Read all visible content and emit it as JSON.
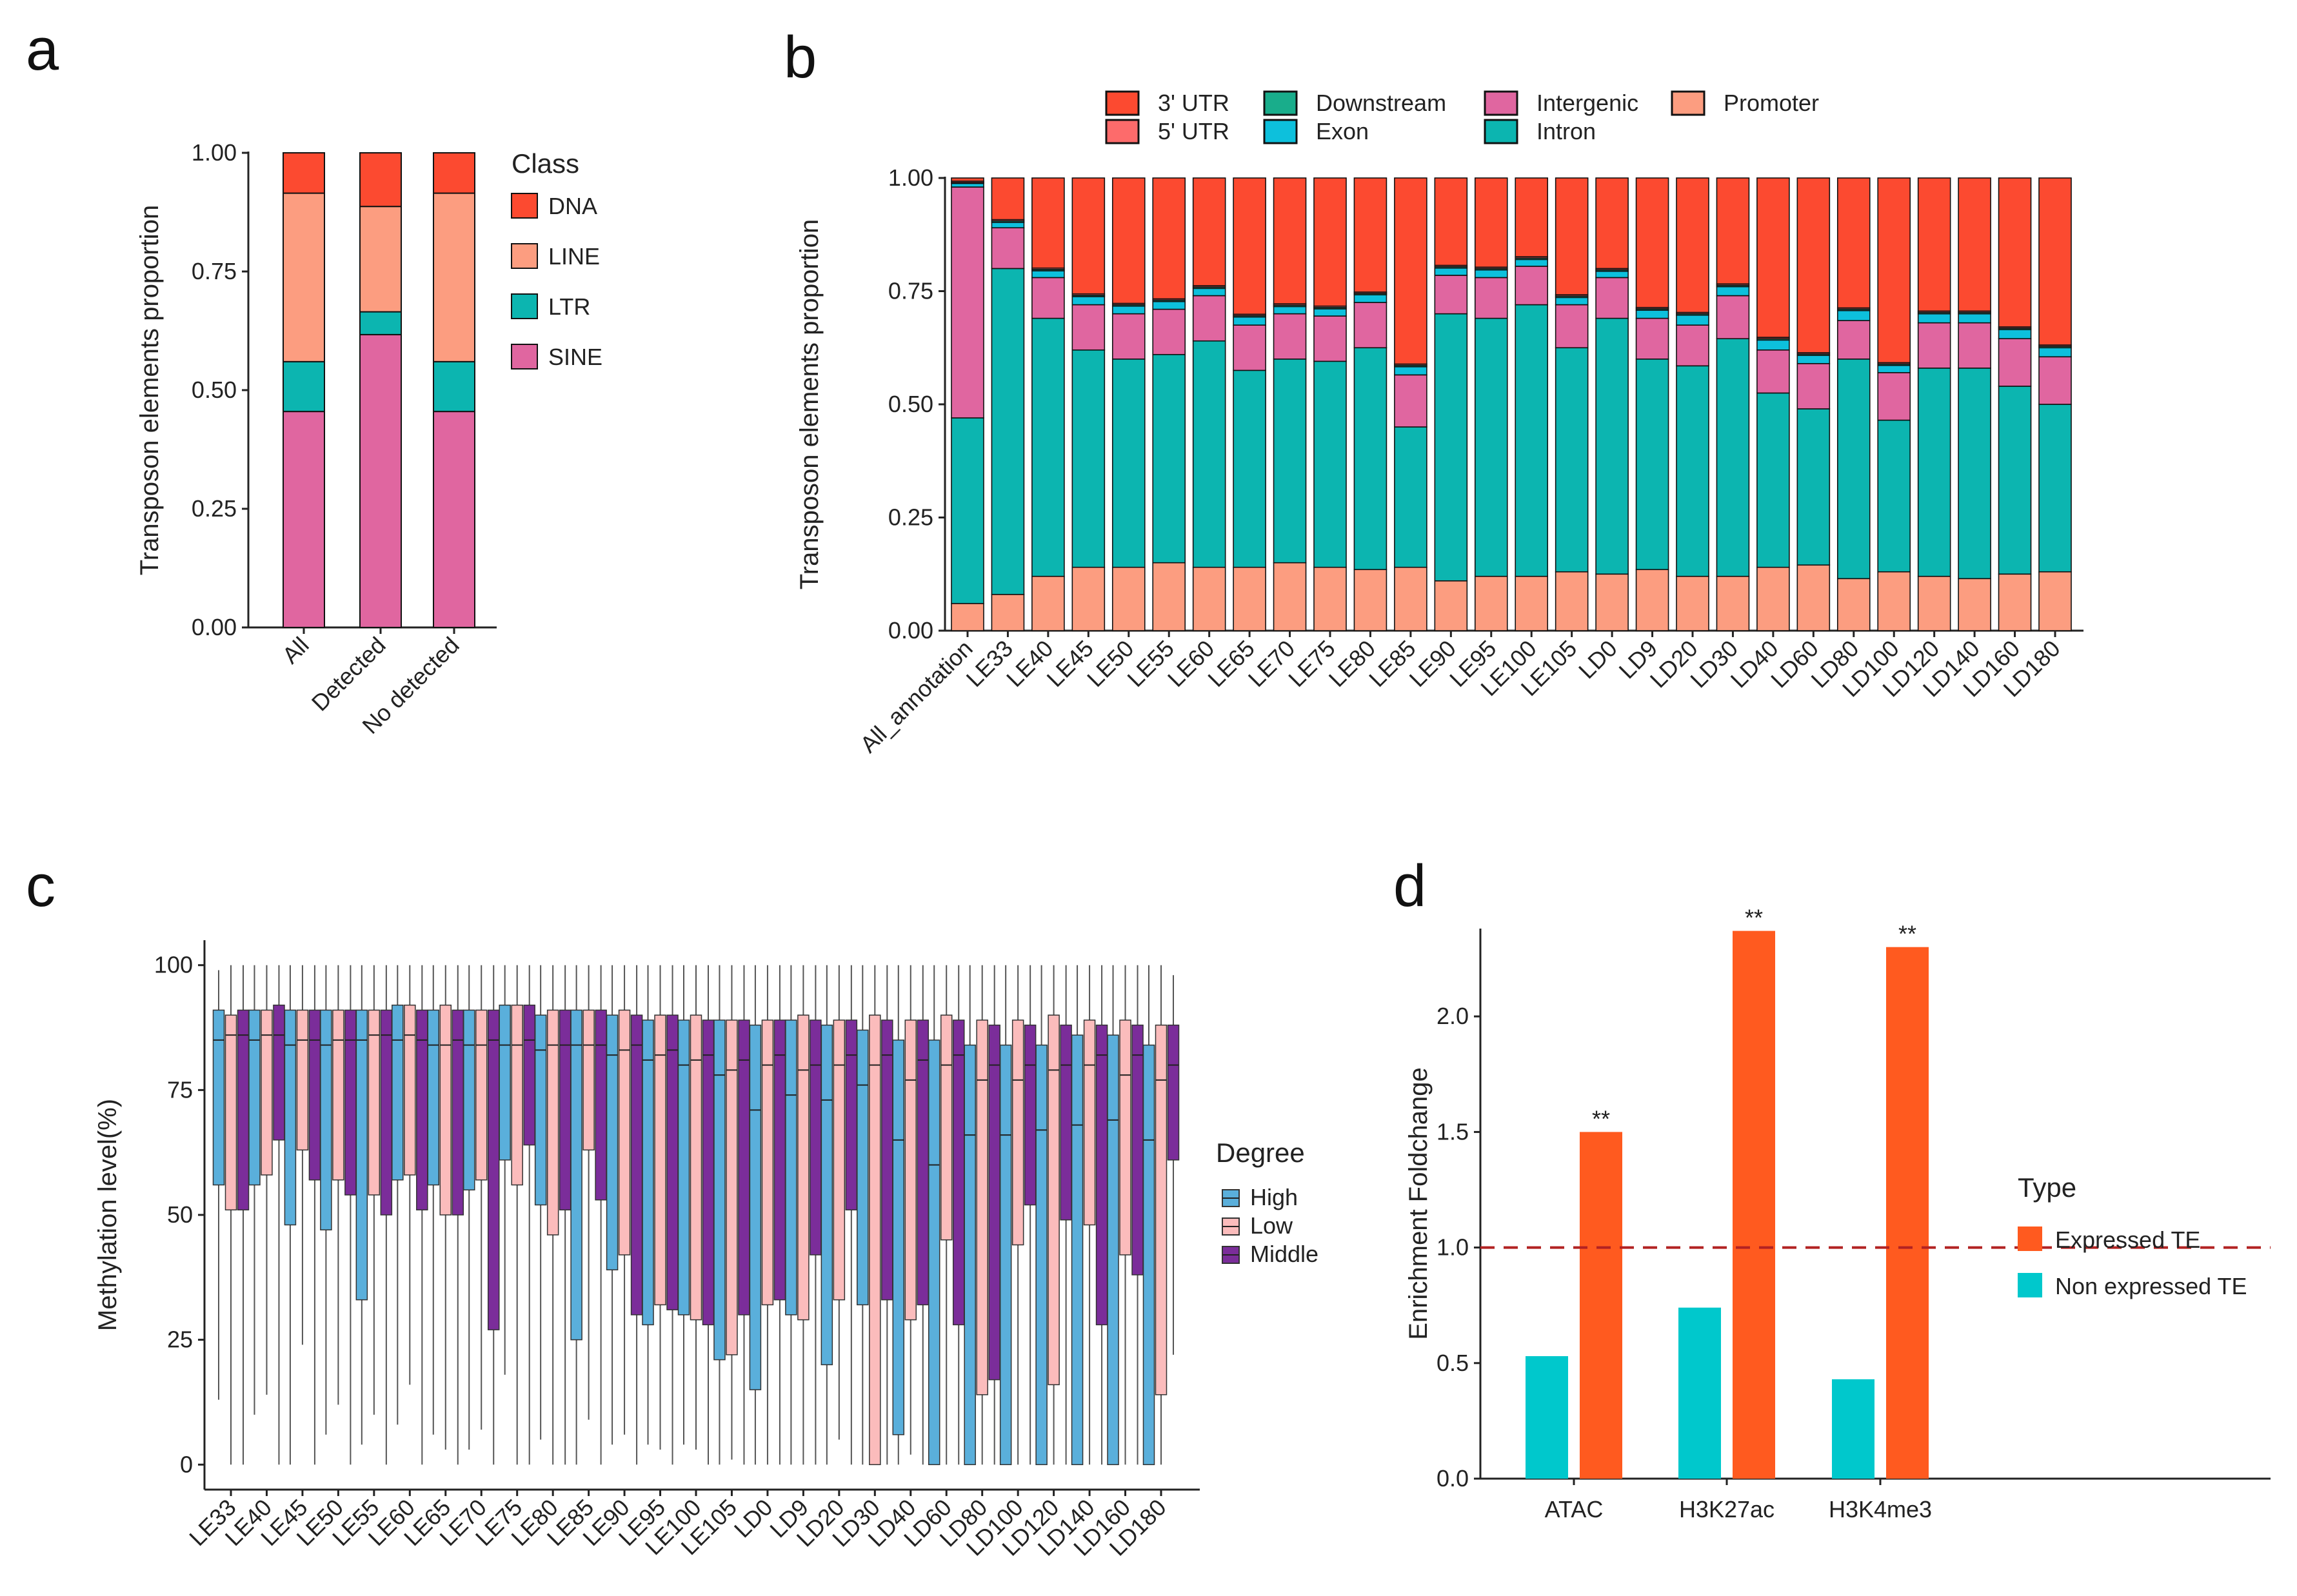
{
  "chart_data": [
    {
      "panel": "a",
      "type": "bar",
      "stacked": true,
      "title": "",
      "xlabel": "",
      "ylabel": "Transposon elements proportion",
      "ylim": [
        0,
        1
      ],
      "yticks": [
        "0.00",
        "0.25",
        "0.50",
        "0.75",
        "1.00"
      ],
      "categories": [
        "All",
        "Detected",
        "No detected"
      ],
      "legend_title": "Class",
      "legend_position": "right",
      "series": [
        {
          "name": "SINE",
          "color": "#e066a0",
          "values": [
            0.455,
            0.617,
            0.455
          ]
        },
        {
          "name": "LTR",
          "color": "#0cb5b0",
          "values": [
            0.105,
            0.048,
            0.105
          ]
        },
        {
          "name": "LINE",
          "color": "#fc9d80",
          "values": [
            0.355,
            0.222,
            0.355
          ]
        },
        {
          "name": "DNA",
          "color": "#fc4a30",
          "values": [
            0.085,
            0.113,
            0.085
          ]
        }
      ],
      "legend_order": [
        "DNA",
        "LINE",
        "LTR",
        "SINE"
      ]
    },
    {
      "panel": "b",
      "type": "bar",
      "stacked": true,
      "title": "",
      "xlabel": "",
      "ylabel": "Transposon elements proportion",
      "ylim": [
        0,
        1
      ],
      "yticks": [
        "0.00",
        "0.25",
        "0.50",
        "0.75",
        "1.00"
      ],
      "categories": [
        "All_annotation",
        "LE33",
        "LE40",
        "LE45",
        "LE50",
        "LE55",
        "LE60",
        "LE65",
        "LE70",
        "LE75",
        "LE80",
        "LE85",
        "LE90",
        "LE95",
        "LE100",
        "LE105",
        "LD0",
        "LD9",
        "LD20",
        "LD30",
        "LD40",
        "LD60",
        "LD80",
        "LD100",
        "LD120",
        "LD140",
        "LD160",
        "LD180"
      ],
      "legend_position": "top",
      "series": [
        {
          "name": "Promoter",
          "color": "#fc9d80",
          "values": [
            0.06,
            0.08,
            0.12,
            0.14,
            0.14,
            0.15,
            0.14,
            0.14,
            0.15,
            0.14,
            0.135,
            0.14,
            0.11,
            0.12,
            0.12,
            0.13,
            0.125,
            0.135,
            0.12,
            0.12,
            0.14,
            0.145,
            0.115,
            0.13,
            0.12,
            0.115,
            0.125,
            0.13
          ]
        },
        {
          "name": "Intron",
          "color": "#0cb5b0",
          "values": [
            0.41,
            0.72,
            0.57,
            0.48,
            0.46,
            0.46,
            0.5,
            0.435,
            0.45,
            0.455,
            0.49,
            0.31,
            0.59,
            0.57,
            0.6,
            0.495,
            0.565,
            0.465,
            0.465,
            0.525,
            0.385,
            0.345,
            0.485,
            0.335,
            0.46,
            0.465,
            0.415,
            0.37
          ]
        },
        {
          "name": "Intergenic",
          "color": "#e066a0",
          "values": [
            0.51,
            0.09,
            0.09,
            0.1,
            0.1,
            0.1,
            0.1,
            0.1,
            0.1,
            0.1,
            0.1,
            0.115,
            0.085,
            0.09,
            0.085,
            0.095,
            0.09,
            0.09,
            0.09,
            0.095,
            0.095,
            0.1,
            0.085,
            0.105,
            0.1,
            0.1,
            0.105,
            0.105
          ]
        },
        {
          "name": "Exon",
          "color": "#0dc0dc",
          "values": [
            0.008,
            0.012,
            0.015,
            0.018,
            0.017,
            0.017,
            0.016,
            0.018,
            0.016,
            0.016,
            0.017,
            0.018,
            0.016,
            0.017,
            0.015,
            0.016,
            0.014,
            0.018,
            0.022,
            0.02,
            0.022,
            0.018,
            0.022,
            0.016,
            0.02,
            0.02,
            0.02,
            0.02
          ]
        },
        {
          "name": "Downstream",
          "color": "#19ad8b",
          "values": [
            0.002,
            0.003,
            0.003,
            0.003,
            0.003,
            0.003,
            0.003,
            0.003,
            0.003,
            0.003,
            0.003,
            0.003,
            0.003,
            0.003,
            0.003,
            0.003,
            0.003,
            0.003,
            0.003,
            0.003,
            0.003,
            0.003,
            0.003,
            0.003,
            0.003,
            0.003,
            0.003,
            0.003
          ]
        },
        {
          "name": "5' UTR",
          "color": "#fd6b6b",
          "values": [
            0.003,
            0.003,
            0.003,
            0.003,
            0.003,
            0.003,
            0.003,
            0.003,
            0.003,
            0.003,
            0.003,
            0.003,
            0.003,
            0.003,
            0.003,
            0.003,
            0.003,
            0.003,
            0.003,
            0.003,
            0.003,
            0.003,
            0.003,
            0.003,
            0.003,
            0.003,
            0.003,
            0.003
          ]
        },
        {
          "name": "3' UTR",
          "color": "#fc4a30",
          "values": [
            0.007,
            0.092,
            0.199,
            0.256,
            0.277,
            0.267,
            0.241,
            0.304,
            0.278,
            0.283,
            0.252,
            0.411,
            0.193,
            0.197,
            0.174,
            0.258,
            0.2,
            0.286,
            0.297,
            0.234,
            0.352,
            0.386,
            0.287,
            0.408,
            0.294,
            0.294,
            0.329,
            0.369
          ]
        }
      ],
      "legend_items": [
        {
          "name": "3' UTR",
          "color": "#fc4a30"
        },
        {
          "name": "5' UTR",
          "color": "#fd6b6b"
        },
        {
          "name": "Downstream",
          "color": "#19ad8b"
        },
        {
          "name": "Exon",
          "color": "#0dc0dc"
        },
        {
          "name": "Intergenic",
          "color": "#e066a0"
        },
        {
          "name": "Intron",
          "color": "#0cb5b0"
        },
        {
          "name": "Promoter",
          "color": "#fc9d80"
        }
      ]
    },
    {
      "panel": "c",
      "type": "boxplot",
      "title": "",
      "xlabel": "",
      "ylabel": "Methylation level(%)",
      "ylim": [
        -5,
        105
      ],
      "yticks": [
        "0",
        "25",
        "50",
        "75",
        "100"
      ],
      "categories": [
        "LE33",
        "LE40",
        "LE45",
        "LE50",
        "LE55",
        "LE60",
        "LE65",
        "LE70",
        "LE75",
        "LE80",
        "LE85",
        "LE90",
        "LE95",
        "LE100",
        "LE105",
        "LD0",
        "LD9",
        "LD20",
        "LD30",
        "LD40",
        "LD60",
        "LD80",
        "LD100",
        "LD120",
        "LD140",
        "LD160",
        "LD180"
      ],
      "legend_title": "Degree",
      "legend_position": "right",
      "series": [
        {
          "name": "High",
          "color": "#5aafdb",
          "q1": [
            56,
            56,
            48,
            47,
            33,
            57,
            56,
            55,
            61,
            52,
            25,
            39,
            28,
            30,
            21,
            15,
            30,
            20,
            32,
            6,
            0,
            0,
            0,
            0,
            0,
            0,
            0
          ],
          "median": [
            85,
            85,
            84,
            84,
            85,
            85,
            84,
            84,
            84,
            83,
            84,
            82,
            81,
            80,
            78,
            71,
            74,
            73,
            76,
            65,
            60,
            66,
            66,
            67,
            68,
            69,
            65
          ],
          "q3": [
            91,
            91,
            91,
            91,
            91,
            92,
            91,
            91,
            92,
            90,
            91,
            90,
            89,
            89,
            89,
            88,
            89,
            88,
            87,
            85,
            85,
            84,
            84,
            84,
            86,
            86,
            84
          ],
          "low": [
            13,
            10,
            0,
            6,
            4,
            8,
            6,
            3,
            18,
            5,
            0,
            4,
            4,
            4,
            0,
            0,
            0,
            0,
            0,
            0,
            0,
            0,
            0,
            0,
            0,
            0,
            0
          ],
          "high": [
            99,
            100,
            100,
            100,
            100,
            100,
            100,
            100,
            100,
            100,
            100,
            100,
            100,
            100,
            100,
            100,
            100,
            100,
            100,
            100,
            100,
            100,
            100,
            100,
            100,
            100,
            100
          ]
        },
        {
          "name": "Low",
          "color": "#fbbcbc",
          "q1": [
            51,
            58,
            63,
            57,
            54,
            58,
            50,
            57,
            56,
            46,
            63,
            42,
            32,
            29,
            22,
            32,
            29,
            33,
            0,
            29,
            45,
            14,
            44,
            16,
            48,
            42,
            14
          ],
          "median": [
            86,
            86,
            85,
            85,
            86,
            86,
            84,
            84,
            84,
            84,
            84,
            83,
            82,
            81,
            79,
            80,
            79,
            80,
            80,
            77,
            80,
            77,
            77,
            79,
            80,
            78,
            77
          ],
          "q3": [
            90,
            91,
            91,
            91,
            91,
            92,
            92,
            91,
            92,
            91,
            91,
            91,
            90,
            90,
            89,
            89,
            90,
            89,
            90,
            89,
            90,
            89,
            89,
            90,
            89,
            89,
            88
          ],
          "low": [
            0,
            14,
            24,
            12,
            10,
            16,
            3,
            7,
            0,
            0,
            9,
            6,
            3,
            3,
            1,
            0,
            0,
            5,
            0,
            2,
            0,
            0,
            0,
            0,
            0,
            0,
            0
          ],
          "high": [
            100,
            100,
            100,
            100,
            100,
            100,
            100,
            100,
            100,
            100,
            100,
            100,
            100,
            100,
            100,
            100,
            100,
            100,
            100,
            100,
            100,
            100,
            100,
            100,
            100,
            100,
            100
          ]
        },
        {
          "name": "Middle",
          "color": "#7b2d9a",
          "q1": [
            51,
            65,
            57,
            54,
            50,
            51,
            50,
            27,
            64,
            51,
            53,
            30,
            31,
            28,
            30,
            33,
            42,
            51,
            33,
            32,
            28,
            17,
            52,
            49,
            28,
            38,
            61
          ],
          "median": [
            86,
            86,
            85,
            85,
            86,
            85,
            85,
            85,
            85,
            84,
            84,
            84,
            83,
            82,
            81,
            82,
            80,
            82,
            82,
            81,
            82,
            80,
            80,
            80,
            82,
            82,
            80
          ],
          "q3": [
            91,
            92,
            91,
            91,
            91,
            91,
            91,
            91,
            92,
            91,
            91,
            90,
            90,
            89,
            89,
            89,
            89,
            89,
            89,
            89,
            89,
            88,
            88,
            88,
            88,
            88,
            88
          ],
          "low": [
            0,
            0,
            0,
            0,
            0,
            0,
            0,
            0,
            0,
            0,
            0,
            0,
            0,
            0,
            0,
            0,
            0,
            0,
            0,
            0,
            0,
            0,
            0,
            0,
            0,
            0,
            22
          ],
          "high": [
            100,
            100,
            100,
            100,
            100,
            100,
            100,
            100,
            100,
            100,
            100,
            100,
            100,
            100,
            100,
            100,
            100,
            100,
            100,
            100,
            100,
            100,
            100,
            100,
            100,
            100,
            98
          ]
        }
      ]
    },
    {
      "panel": "d",
      "type": "bar",
      "title": "",
      "xlabel": "",
      "ylabel": "Enrichment Foldchange",
      "ylim": [
        0,
        2.38
      ],
      "yticks": [
        "0.0",
        "0.5",
        "1.0",
        "1.5",
        "2.0"
      ],
      "categories": [
        "ATAC",
        "H3K27ac",
        "H3K4me3"
      ],
      "reference_line": 1.0,
      "reference_line_color": "#b22222",
      "legend_title": "Type",
      "legend_position": "right",
      "series": [
        {
          "name": "Non expressed TE",
          "color": "#00c8cc",
          "values": [
            0.53,
            0.74,
            0.43
          ]
        },
        {
          "name": "Expressed TE",
          "color": "#ff5a1f",
          "values": [
            1.5,
            2.37,
            2.3
          ]
        }
      ],
      "annotations": [
        "**",
        "**",
        "**"
      ],
      "legend_order": [
        "Expressed TE",
        "Non expressed TE"
      ]
    }
  ]
}
